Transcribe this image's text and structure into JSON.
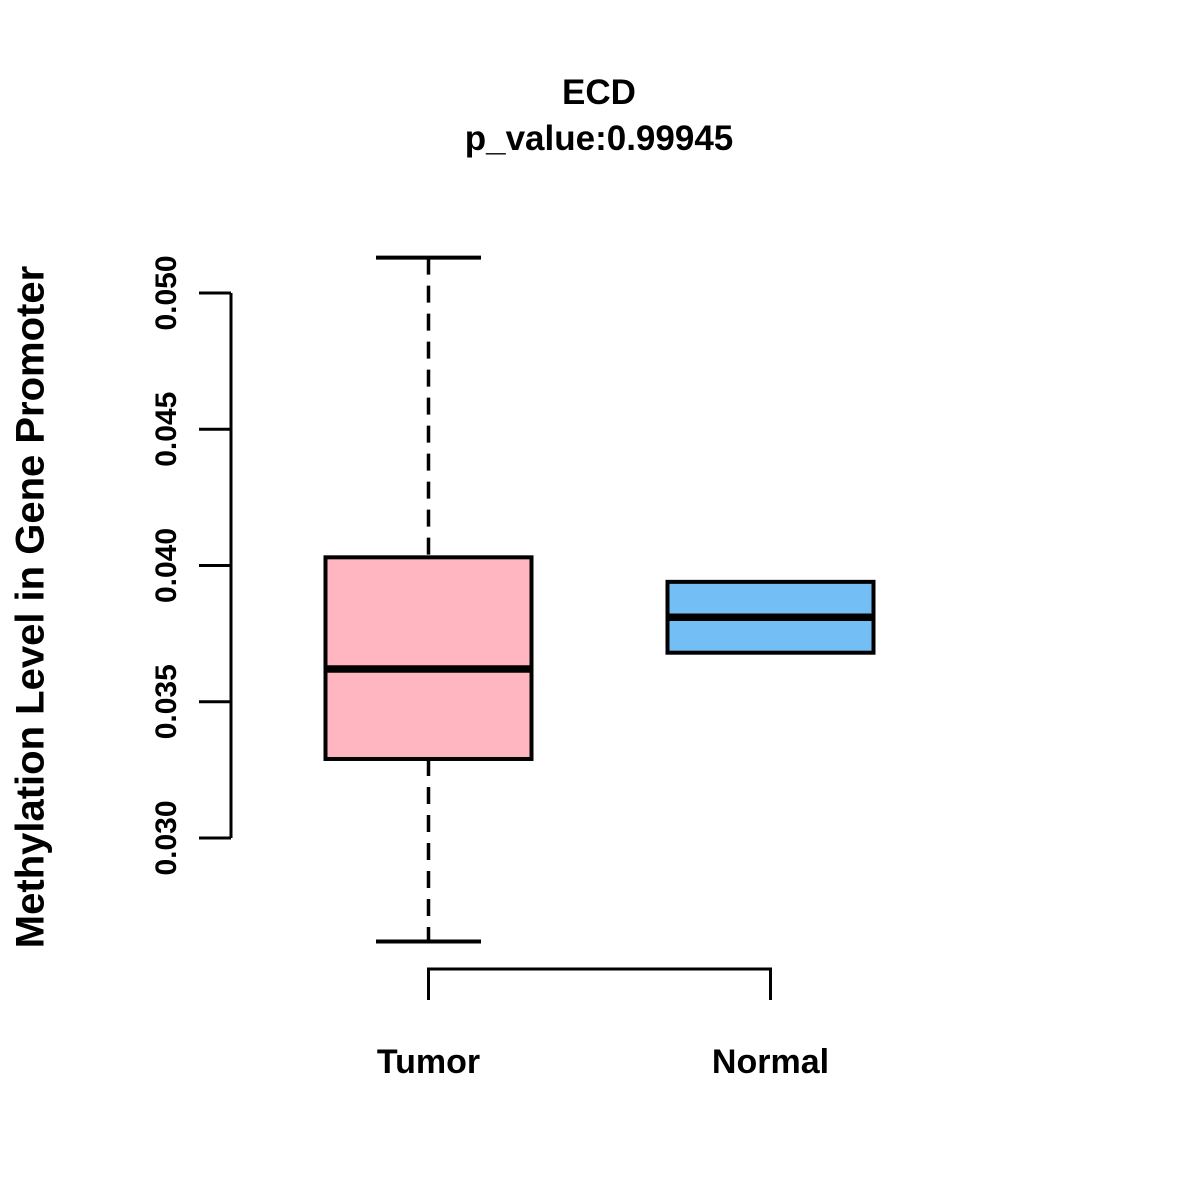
{
  "title": "ECD",
  "subtitle": "p_value:0.99945",
  "ylabel": "Methylation Level in Gene Promoter",
  "colors": {
    "tumor_fill": "#FFB6C1",
    "normal_fill": "#73BFF5",
    "stroke": "#000000",
    "background": "#FFFFFF"
  },
  "chart_data": {
    "type": "boxplot",
    "title": "ECD",
    "subtitle": "p_value:0.99945",
    "xlabel": "",
    "ylabel": "Methylation Level in Gene Promoter",
    "categories": [
      "Tumor",
      "Normal"
    ],
    "yticks": [
      0.03,
      0.035,
      0.04,
      0.045,
      0.05
    ],
    "ytick_labels": [
      "0.030",
      "0.035",
      "0.040",
      "0.045",
      "0.050"
    ],
    "ylim": [
      0.026,
      0.0515
    ],
    "grid": false,
    "legend": false,
    "series": [
      {
        "name": "Tumor",
        "color": "#FFB6C1",
        "whisker_low": 0.0262,
        "q1": 0.0329,
        "median": 0.0362,
        "q3": 0.0403,
        "whisker_high": 0.0513,
        "outliers": []
      },
      {
        "name": "Normal",
        "color": "#73BFF5",
        "whisker_low": 0.0368,
        "q1": 0.0368,
        "median": 0.0381,
        "q3": 0.0394,
        "whisker_high": 0.0394,
        "outliers": []
      }
    ]
  }
}
